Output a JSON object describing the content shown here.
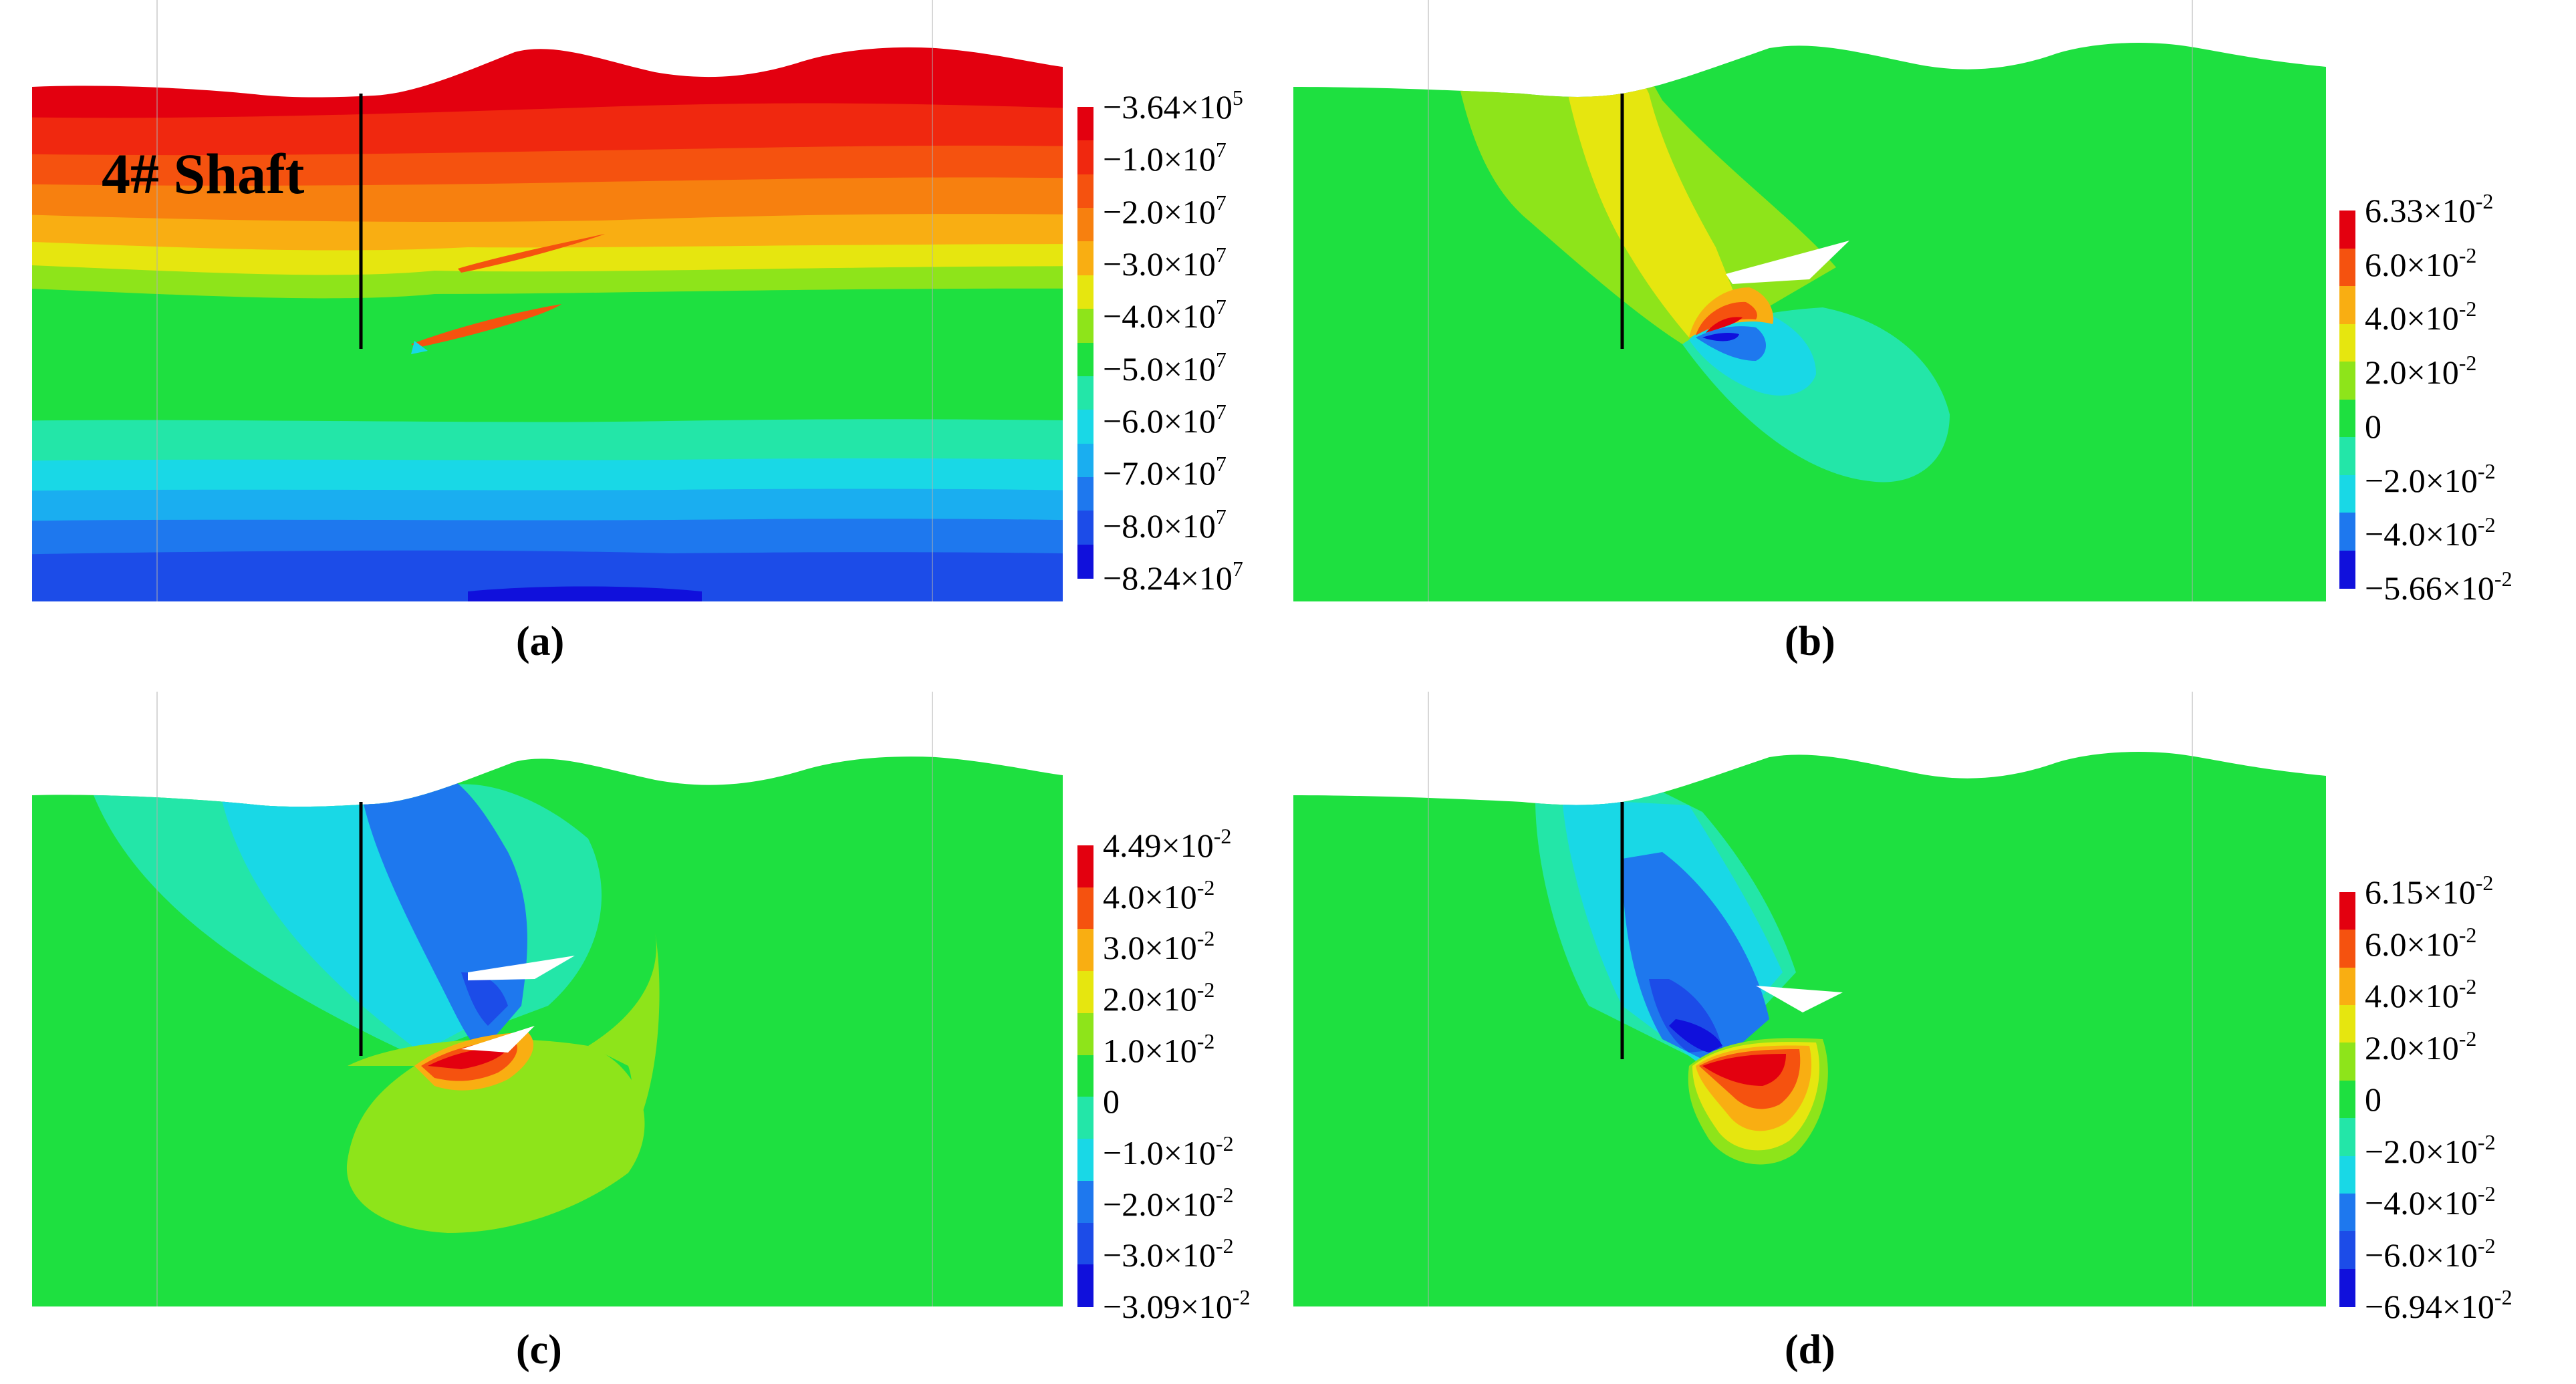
{
  "panels": [
    {
      "id": "a",
      "caption": "(a)",
      "annotation": "4# Shaft",
      "legend": {
        "colors": [
          "#e3000f",
          "#f0280f",
          "#f5520f",
          "#f7800f",
          "#f9ae12",
          "#e6e60f",
          "#8ee41a",
          "#1ee040",
          "#23e6a8",
          "#19d8e6",
          "#1aaef0",
          "#1e78ee",
          "#1c4ce8",
          "#1010dc"
        ],
        "labels": [
          {
            "mant": "−3.64×10",
            "exp": "5"
          },
          {
            "mant": "−1.0×10",
            "exp": "7"
          },
          {
            "mant": "−2.0×10",
            "exp": "7"
          },
          {
            "mant": "−3.0×10",
            "exp": "7"
          },
          {
            "mant": "−4.0×10",
            "exp": "7"
          },
          {
            "mant": "−5.0×10",
            "exp": "7"
          },
          {
            "mant": "−6.0×10",
            "exp": "7"
          },
          {
            "mant": "−7.0×10",
            "exp": "7"
          },
          {
            "mant": "−8.0×10",
            "exp": "7"
          },
          {
            "mant": "−8.24×10",
            "exp": "7"
          }
        ]
      }
    },
    {
      "id": "b",
      "caption": "(b)",
      "legend": {
        "colors": [
          "#e3000f",
          "#f5520f",
          "#f9ae12",
          "#e6e60f",
          "#8ee41a",
          "#1ee040",
          "#23e6a8",
          "#19d8e6",
          "#1e78ee",
          "#1010dc"
        ],
        "labels": [
          {
            "mant": "6.33×10",
            "exp": "-2"
          },
          {
            "mant": "6.0×10",
            "exp": "-2"
          },
          {
            "mant": "4.0×10",
            "exp": "-2"
          },
          {
            "mant": "2.0×10",
            "exp": "-2"
          },
          {
            "mant": "0",
            "exp": ""
          },
          {
            "mant": "−2.0×10",
            "exp": "-2"
          },
          {
            "mant": "−4.0×10",
            "exp": "-2"
          },
          {
            "mant": "−5.66×10",
            "exp": "-2"
          }
        ]
      }
    },
    {
      "id": "c",
      "caption": "(c)",
      "legend": {
        "colors": [
          "#e3000f",
          "#f5520f",
          "#f9ae12",
          "#e6e60f",
          "#8ee41a",
          "#1ee040",
          "#23e6a8",
          "#19d8e6",
          "#1e78ee",
          "#1c4ce8",
          "#1010dc"
        ],
        "labels": [
          {
            "mant": "4.49×10",
            "exp": "-2"
          },
          {
            "mant": "4.0×10",
            "exp": "-2"
          },
          {
            "mant": "3.0×10",
            "exp": "-2"
          },
          {
            "mant": "2.0×10",
            "exp": "-2"
          },
          {
            "mant": "1.0×10",
            "exp": "-2"
          },
          {
            "mant": "0",
            "exp": ""
          },
          {
            "mant": "−1.0×10",
            "exp": "-2"
          },
          {
            "mant": "−2.0×10",
            "exp": "-2"
          },
          {
            "mant": "−3.0×10",
            "exp": "-2"
          },
          {
            "mant": "−3.09×10",
            "exp": "-2"
          }
        ]
      }
    },
    {
      "id": "d",
      "caption": "(d)",
      "legend": {
        "colors": [
          "#e3000f",
          "#f5520f",
          "#f9ae12",
          "#e6e60f",
          "#8ee41a",
          "#1ee040",
          "#23e6a8",
          "#19d8e6",
          "#1e78ee",
          "#1c4ce8",
          "#1010dc"
        ],
        "labels": [
          {
            "mant": "6.15×10",
            "exp": "-2"
          },
          {
            "mant": "6.0×10",
            "exp": "-2"
          },
          {
            "mant": "4.0×10",
            "exp": "-2"
          },
          {
            "mant": "2.0×10",
            "exp": "-2"
          },
          {
            "mant": "0",
            "exp": ""
          },
          {
            "mant": "−2.0×10",
            "exp": "-2"
          },
          {
            "mant": "−4.0×10",
            "exp": "-2"
          },
          {
            "mant": "−6.0×10",
            "exp": "-2"
          },
          {
            "mant": "−6.94×10",
            "exp": "-2"
          }
        ]
      }
    }
  ]
}
